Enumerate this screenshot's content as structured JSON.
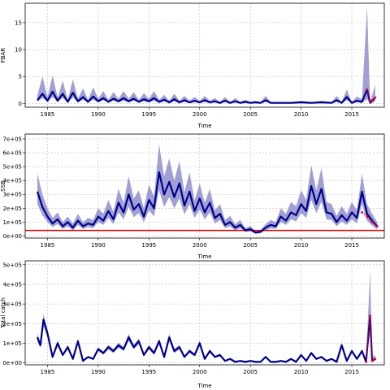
{
  "colors": {
    "band": "#8f8fcc",
    "line": "#00008b",
    "forecast": "#e0003c",
    "reference": "#e00000",
    "grid": "#bdbdbd"
  },
  "chart_data": [
    {
      "type": "line",
      "ylabel": "FBAR",
      "xlabel": "Time",
      "xlim": [
        1982.8,
        2018.2
      ],
      "ylim": [
        -0.7,
        18.6
      ],
      "xticks": [
        1985,
        1990,
        1995,
        2000,
        2005,
        2010,
        2015
      ],
      "yticks": [
        0,
        5,
        10,
        15
      ],
      "ytick_labels": [
        "0",
        "5",
        "10",
        "15"
      ],
      "grid": true,
      "series": [
        {
          "role": "median",
          "x": [
            1984,
            1984.5,
            1985,
            1985.5,
            1986,
            1986.5,
            1987,
            1987.5,
            1988,
            1988.5,
            1989,
            1989.5,
            1990,
            1990.5,
            1991,
            1991.5,
            1992,
            1992.5,
            1993,
            1993.5,
            1994,
            1994.5,
            1995,
            1995.5,
            1996,
            1996.5,
            1997,
            1997.5,
            1998,
            1998.5,
            1999,
            1999.5,
            2000,
            2000.5,
            2001,
            2001.5,
            2002,
            2002.5,
            2003,
            2003.5,
            2004,
            2004.5,
            2005,
            2005.5,
            2006,
            2006.5,
            2007,
            2008,
            2009,
            2010,
            2011,
            2012,
            2013,
            2013.5,
            2014,
            2014.5,
            2015,
            2015.5,
            2016,
            2016.5,
            2016.8,
            2017,
            2017.3
          ],
          "y": [
            0.6,
            1.8,
            0.5,
            2.2,
            0.5,
            1.8,
            0.3,
            2.0,
            0.4,
            1.2,
            0.3,
            1.3,
            0.4,
            1.0,
            0.3,
            0.9,
            0.4,
            1.0,
            0.4,
            0.9,
            0.3,
            0.8,
            0.4,
            1.0,
            0.3,
            0.7,
            0.2,
            0.8,
            0.2,
            0.6,
            0.2,
            0.5,
            0.2,
            0.6,
            0.2,
            0.4,
            0.1,
            0.5,
            0.1,
            0.4,
            0.1,
            0.3,
            0.1,
            0.2,
            0.1,
            0.6,
            0.1,
            0.1,
            0.1,
            0.2,
            0.1,
            0.2,
            0.1,
            0.6,
            0.1,
            1.2,
            0.1,
            0.5,
            0.3,
            2.6,
            0.1,
            0.4,
            1.1
          ],
          "lower": [
            0.3,
            1.0,
            0.3,
            1.2,
            0.3,
            1.0,
            0.2,
            1.1,
            0.2,
            0.7,
            0.2,
            0.7,
            0.2,
            0.6,
            0.2,
            0.5,
            0.2,
            0.5,
            0.2,
            0.5,
            0.2,
            0.4,
            0.2,
            0.5,
            0.1,
            0.4,
            0.1,
            0.4,
            0.1,
            0.3,
            0.1,
            0.3,
            0.1,
            0.3,
            0.1,
            0.2,
            0.05,
            0.3,
            0.05,
            0.2,
            0.05,
            0.15,
            0.05,
            0.1,
            0.05,
            0.3,
            0.05,
            0.05,
            0.05,
            0.1,
            0.05,
            0.1,
            0.05,
            0.3,
            0.05,
            0.6,
            0.05,
            0.25,
            0.1,
            0.8,
            0.05,
            0.2,
            0.5
          ],
          "upper": [
            1.5,
            5.0,
            1.2,
            5.2,
            1.1,
            4.2,
            0.7,
            4.5,
            0.9,
            2.8,
            0.7,
            3.0,
            0.9,
            2.3,
            0.7,
            2.1,
            0.9,
            2.3,
            0.9,
            2.1,
            0.7,
            1.9,
            0.9,
            2.3,
            0.7,
            1.6,
            0.5,
            1.8,
            0.5,
            1.4,
            0.5,
            1.2,
            0.5,
            1.4,
            0.5,
            1.0,
            0.3,
            1.2,
            0.3,
            1.0,
            0.3,
            0.7,
            0.3,
            0.5,
            0.3,
            1.4,
            0.3,
            0.3,
            0.3,
            0.5,
            0.3,
            0.5,
            0.3,
            1.4,
            0.3,
            2.6,
            0.3,
            1.3,
            0.8,
            18.0,
            0.4,
            1.5,
            3.5
          ]
        },
        {
          "role": "forecast",
          "x": [
            2016.5,
            2016.8,
            2017,
            2017.3
          ],
          "y": [
            2.6,
            0.3,
            0.6,
            1.1
          ]
        }
      ]
    },
    {
      "type": "line",
      "ylabel": "SSB",
      "xlabel": "Time",
      "xlim": [
        1982.8,
        2018.2
      ],
      "ylim": [
        -15000,
        735000
      ],
      "xticks": [
        1985,
        1990,
        1995,
        2000,
        2005,
        2010,
        2015
      ],
      "yticks": [
        0,
        100000,
        200000,
        300000,
        400000,
        500000,
        600000,
        700000
      ],
      "ytick_labels": [
        "0e+00",
        "1e+05",
        "2e+05",
        "3e+05",
        "4e+05",
        "5e+05",
        "6e+05",
        "7e+05"
      ],
      "grid": true,
      "reference_line": 40000,
      "series": [
        {
          "role": "median",
          "x": [
            1984,
            1984.5,
            1985,
            1985.5,
            1986,
            1986.5,
            1987,
            1987.5,
            1988,
            1988.5,
            1989,
            1989.5,
            1990,
            1990.5,
            1991,
            1991.5,
            1992,
            1992.5,
            1993,
            1993.5,
            1994,
            1994.5,
            1995,
            1995.5,
            1996,
            1996.5,
            1997,
            1997.5,
            1998,
            1998.5,
            1999,
            1999.5,
            2000,
            2000.5,
            2001,
            2001.5,
            2002,
            2002.5,
            2003,
            2003.5,
            2004,
            2004.5,
            2005,
            2005.5,
            2006,
            2006.5,
            2007,
            2007.5,
            2008,
            2008.5,
            2009,
            2009.5,
            2010,
            2010.5,
            2011,
            2011.5,
            2012,
            2012.5,
            2013,
            2013.5,
            2014,
            2014.5,
            2015,
            2015.5,
            2016,
            2016.5,
            2017,
            2017.5
          ],
          "y": [
            320000,
            210000,
            140000,
            90000,
            120000,
            70000,
            100000,
            60000,
            110000,
            70000,
            90000,
            80000,
            140000,
            110000,
            180000,
            120000,
            240000,
            170000,
            300000,
            190000,
            230000,
            140000,
            260000,
            200000,
            460000,
            300000,
            390000,
            280000,
            380000,
            220000,
            320000,
            180000,
            270000,
            170000,
            240000,
            130000,
            160000,
            80000,
            100000,
            60000,
            80000,
            40000,
            50000,
            25000,
            30000,
            60000,
            80000,
            70000,
            140000,
            110000,
            170000,
            150000,
            230000,
            180000,
            360000,
            230000,
            340000,
            170000,
            160000,
            100000,
            150000,
            110000,
            170000,
            130000,
            320000,
            160000,
            110000,
            70000
          ],
          "lower": [
            230000,
            150000,
            100000,
            65000,
            85000,
            50000,
            70000,
            40000,
            80000,
            50000,
            65000,
            55000,
            100000,
            80000,
            130000,
            85000,
            170000,
            120000,
            210000,
            135000,
            165000,
            100000,
            185000,
            140000,
            330000,
            210000,
            280000,
            200000,
            270000,
            155000,
            230000,
            130000,
            190000,
            120000,
            170000,
            90000,
            115000,
            55000,
            70000,
            40000,
            55000,
            28000,
            35000,
            15000,
            20000,
            40000,
            55000,
            50000,
            100000,
            80000,
            120000,
            105000,
            165000,
            130000,
            260000,
            165000,
            245000,
            120000,
            115000,
            70000,
            105000,
            80000,
            120000,
            90000,
            230000,
            110000,
            75000,
            45000
          ],
          "upper": [
            450000,
            300000,
            200000,
            130000,
            170000,
            100000,
            140000,
            90000,
            160000,
            100000,
            130000,
            115000,
            200000,
            160000,
            260000,
            175000,
            340000,
            240000,
            430000,
            270000,
            330000,
            200000,
            370000,
            285000,
            660000,
            430000,
            560000,
            400000,
            540000,
            315000,
            460000,
            255000,
            380000,
            240000,
            340000,
            185000,
            230000,
            115000,
            145000,
            85000,
            115000,
            57000,
            72000,
            36000,
            43000,
            86000,
            115000,
            100000,
            200000,
            160000,
            245000,
            215000,
            330000,
            260000,
            510000,
            330000,
            490000,
            245000,
            230000,
            145000,
            215000,
            160000,
            245000,
            185000,
            450000,
            230000,
            160000,
            100000
          ]
        },
        {
          "role": "forecast",
          "x": [
            2016,
            2016.5,
            2017,
            2017.5
          ],
          "y": [
            170000,
            140000,
            100000,
            70000
          ]
        }
      ]
    },
    {
      "type": "line",
      "ylabel": "Total catch",
      "xlabel": "Time",
      "xlim": [
        1982.8,
        2018.2
      ],
      "ylim": [
        -10000,
        520000
      ],
      "xticks": [
        1985,
        1990,
        1995,
        2000,
        2005,
        2010,
        2015
      ],
      "yticks": [
        0,
        100000,
        200000,
        300000,
        400000,
        500000
      ],
      "ytick_labels": [
        "0e+00",
        "1e+05",
        "2e+05",
        "3e+05",
        "4e+05",
        "5e+05"
      ],
      "grid": true,
      "series": [
        {
          "role": "median",
          "x": [
            1984,
            1984.3,
            1984.6,
            1985,
            1985.5,
            1986,
            1986.5,
            1987,
            1987.5,
            1988,
            1988.5,
            1989,
            1989.5,
            1990,
            1990.5,
            1991,
            1991.5,
            1992,
            1992.5,
            1993,
            1993.5,
            1994,
            1994.5,
            1995,
            1995.5,
            1996,
            1996.5,
            1997,
            1997.5,
            1998,
            1998.5,
            1999,
            1999.5,
            2000,
            2000.5,
            2001,
            2001.5,
            2002,
            2002.5,
            2003,
            2003.5,
            2004,
            2004.5,
            2005,
            2005.5,
            2006,
            2006.5,
            2007,
            2007.5,
            2008,
            2008.5,
            2009,
            2009.5,
            2010,
            2010.5,
            2011,
            2011.5,
            2012,
            2012.5,
            2013,
            2013.5,
            2014,
            2014.5,
            2015,
            2015.5,
            2016,
            2016.4,
            2016.8,
            2017,
            2017.3
          ],
          "y": [
            130000,
            90000,
            220000,
            150000,
            30000,
            100000,
            40000,
            80000,
            20000,
            110000,
            10000,
            30000,
            20000,
            70000,
            50000,
            80000,
            60000,
            90000,
            70000,
            130000,
            80000,
            110000,
            40000,
            80000,
            50000,
            110000,
            30000,
            130000,
            60000,
            80000,
            30000,
            60000,
            40000,
            100000,
            20000,
            60000,
            30000,
            40000,
            10000,
            20000,
            5000,
            10000,
            5000,
            10000,
            5000,
            5000,
            30000,
            5000,
            5000,
            10000,
            5000,
            20000,
            5000,
            40000,
            10000,
            50000,
            20000,
            30000,
            10000,
            20000,
            5000,
            90000,
            10000,
            60000,
            20000,
            60000,
            5000,
            240000,
            10000,
            20000
          ],
          "lower": [
            110000,
            75000,
            190000,
            130000,
            25000,
            85000,
            33000,
            68000,
            16000,
            95000,
            8000,
            25000,
            16000,
            60000,
            42000,
            68000,
            50000,
            77000,
            60000,
            112000,
            68000,
            95000,
            33000,
            68000,
            42000,
            95000,
            25000,
            112000,
            50000,
            68000,
            25000,
            50000,
            33000,
            85000,
            16000,
            50000,
            25000,
            33000,
            8000,
            16000,
            4000,
            8000,
            4000,
            8000,
            4000,
            4000,
            25000,
            4000,
            4000,
            8000,
            4000,
            16000,
            4000,
            33000,
            8000,
            42000,
            16000,
            25000,
            8000,
            16000,
            4000,
            77000,
            8000,
            50000,
            16000,
            50000,
            4000,
            150000,
            5000,
            10000
          ],
          "upper": [
            150000,
            105000,
            250000,
            170000,
            35000,
            115000,
            47000,
            92000,
            24000,
            125000,
            12000,
            35000,
            24000,
            80000,
            58000,
            92000,
            70000,
            103000,
            80000,
            148000,
            92000,
            125000,
            47000,
            92000,
            58000,
            125000,
            35000,
            148000,
            70000,
            92000,
            35000,
            70000,
            47000,
            115000,
            24000,
            70000,
            35000,
            47000,
            12000,
            24000,
            6000,
            12000,
            6000,
            12000,
            6000,
            6000,
            35000,
            6000,
            6000,
            12000,
            6000,
            24000,
            6000,
            47000,
            12000,
            58000,
            24000,
            35000,
            12000,
            24000,
            6000,
            103000,
            12000,
            70000,
            24000,
            70000,
            6000,
            470000,
            30000,
            40000
          ]
        },
        {
          "role": "forecast",
          "x": [
            2016.4,
            2016.8,
            2017,
            2017.3
          ],
          "y": [
            5000,
            240000,
            10000,
            20000
          ]
        }
      ]
    }
  ]
}
